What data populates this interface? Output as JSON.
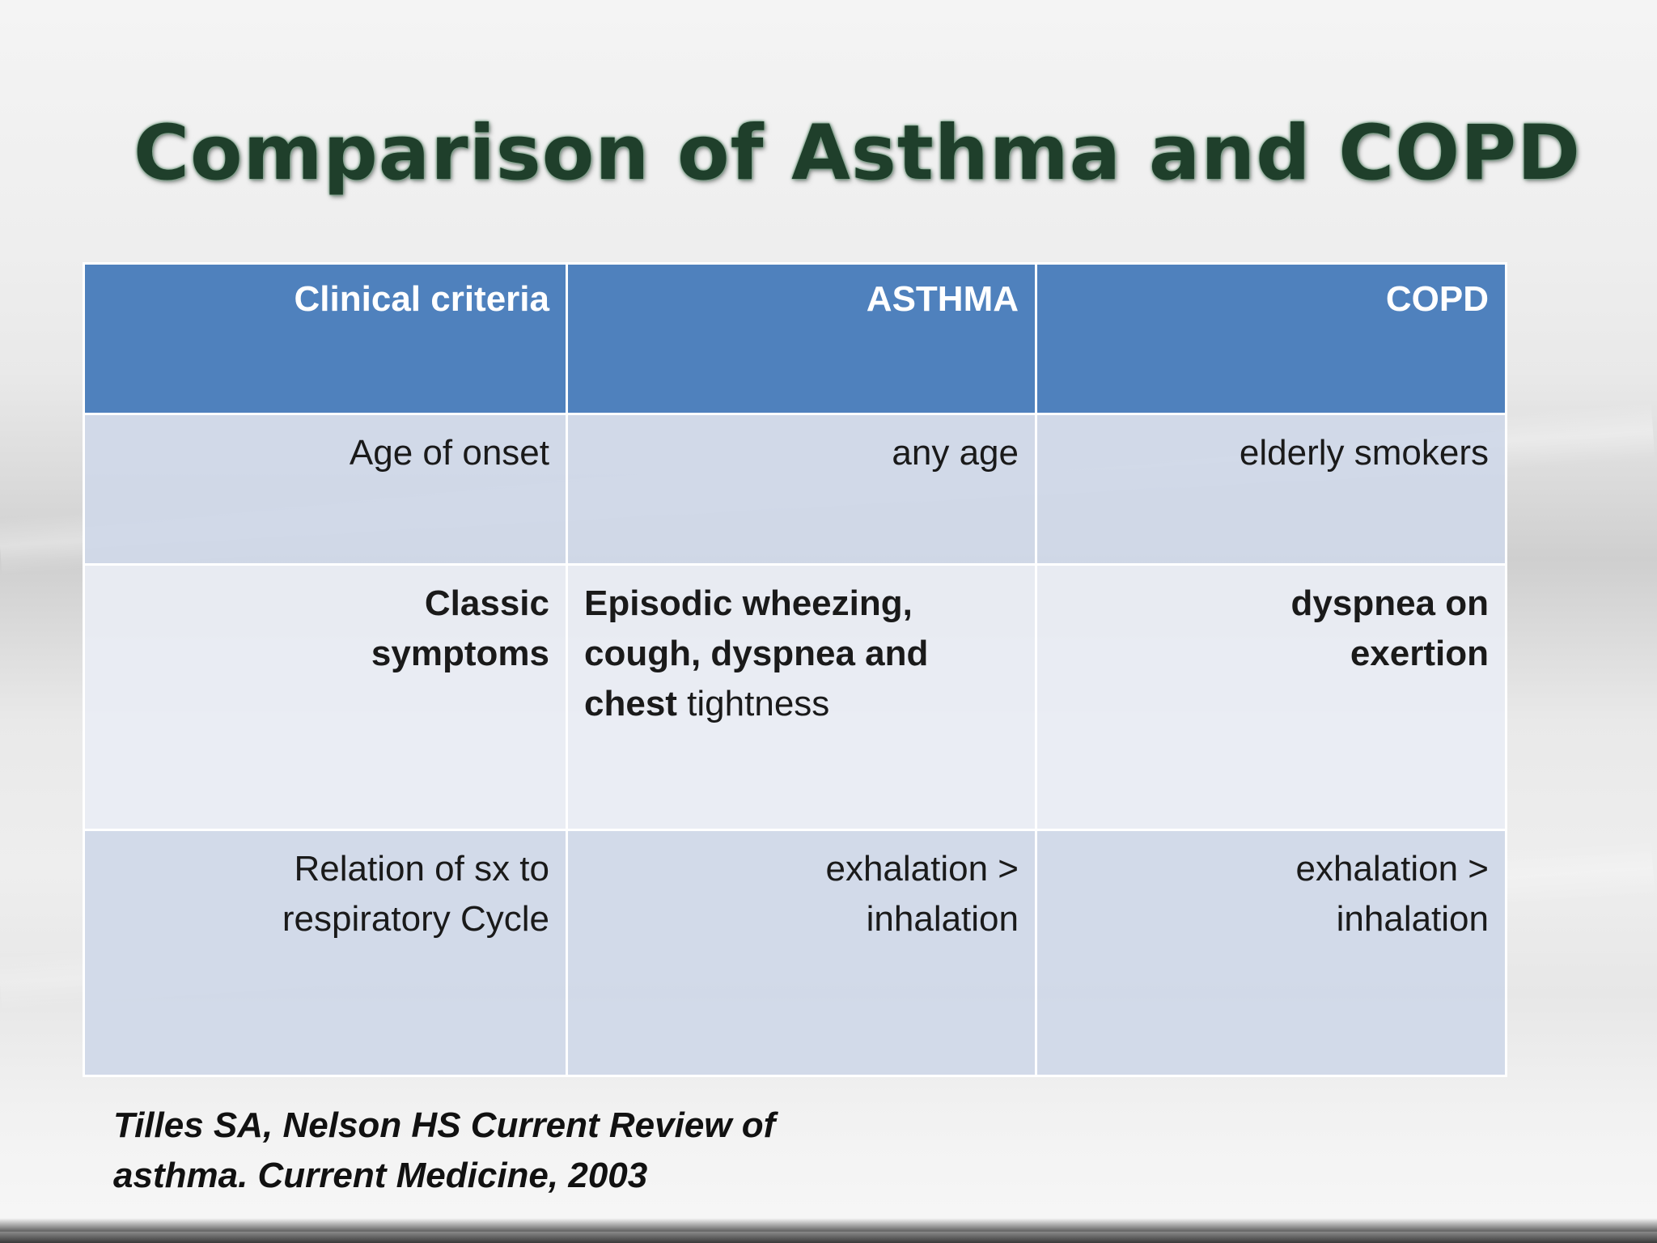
{
  "slide": {
    "title": "Comparison of Asthma and COPD",
    "table": {
      "headers": [
        "Clinical criteria",
        "ASTHMA",
        "COPD"
      ],
      "rows": [
        {
          "criteria": "Age of onset",
          "asthma": "any age",
          "copd": "elderly smokers"
        },
        {
          "criteria_line1": "Classic",
          "criteria_line2": "symptoms",
          "asthma_bold": "Episodic wheezing, cough, dyspnea and chest",
          "asthma_plain": " tightness",
          "copd_line1": "dyspnea on",
          "copd_line2": "exertion"
        },
        {
          "criteria_line1": "Relation of sx to",
          "criteria_line2": "respiratory Cycle",
          "asthma_line1": "exhalation >",
          "asthma_line2": "inhalation",
          "copd_line1": "exhalation >",
          "copd_line2": "inhalation"
        }
      ]
    },
    "citation_line1": "Tilles SA, Nelson HS Current Review of",
    "citation_line2": "asthma. Current Medicine, 2003"
  }
}
